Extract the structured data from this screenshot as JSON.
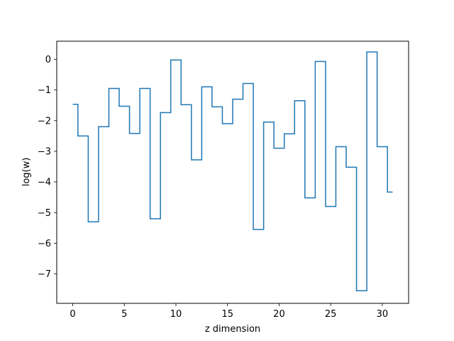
{
  "chart_data": {
    "type": "line",
    "drawstyle": "steps-mid",
    "title": "",
    "xlabel": "z dimension",
    "ylabel": "log(w)",
    "xlim": [
      -1.55,
      32.55
    ],
    "ylim": [
      -7.96,
      0.59
    ],
    "xticks": [
      0,
      5,
      10,
      15,
      20,
      25,
      30
    ],
    "yticks": [
      -7,
      -6,
      -5,
      -4,
      -3,
      -2,
      -1,
      0
    ],
    "grid": false,
    "legend": "none",
    "line_color": "#1f77b4",
    "series": [
      {
        "x": [
          0,
          1,
          2,
          3,
          4,
          5,
          6,
          7,
          8,
          9,
          10,
          11,
          12,
          13,
          14,
          15,
          16,
          17,
          18,
          19,
          20,
          21,
          22,
          23,
          24,
          25,
          26,
          27,
          28,
          29,
          30,
          31
        ],
        "y": [
          -1.47,
          -2.5,
          -5.3,
          -2.2,
          -0.95,
          -1.53,
          -2.42,
          -0.95,
          -5.2,
          -1.74,
          -0.02,
          -1.48,
          -3.28,
          -0.9,
          -1.55,
          -2.1,
          -1.3,
          -0.79,
          -5.55,
          -2.05,
          -2.9,
          -2.43,
          -1.35,
          -4.52,
          -0.07,
          -4.8,
          -2.85,
          -3.52,
          -7.55,
          0.24,
          -2.85,
          -4.33
        ]
      }
    ]
  }
}
